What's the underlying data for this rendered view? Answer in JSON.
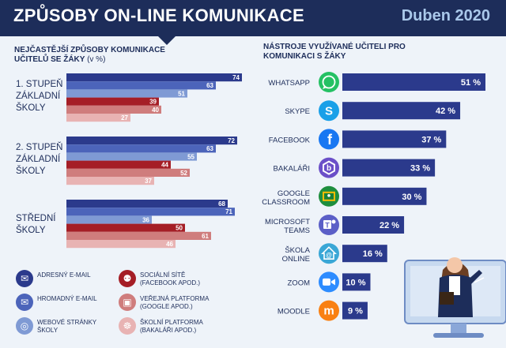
{
  "header": {
    "title": "ZPŮSOBY ON-LINE KOMUNIKACE",
    "date": "Duben 2020"
  },
  "left_title": "NEJČASTĚJŠÍ ZPŮSOBY KOMUNIKACE UČITELŮ SE ŽÁKY",
  "left_unit": "(v %)",
  "right_title": "NÁSTROJE VYUŽÍVANÉ UČITELI PRO KOMUNIKACI S ŽÁKY",
  "colors": {
    "navy": "#1d2d5a",
    "bar_dark_blue": "#2b3a8c",
    "bar_mid_blue": "#4c64ba",
    "bar_light_blue": "#7f9ad4",
    "bar_dark_red": "#a51e26",
    "bar_mid_red": "#cf7d7d",
    "bar_light_red": "#e8b3b3",
    "tool_bar": "#2b3a8c",
    "background": "#eef3f9"
  },
  "legend": [
    {
      "label": "ADRESNÝ E-MAIL",
      "icon": "envelope-icon",
      "color": "#2b3a8c"
    },
    {
      "label": "HROMADNÝ E-MAIL",
      "icon": "envelope-icon",
      "color": "#4c64ba"
    },
    {
      "label": "WEBOVÉ STRÁNKY ŠKOLY",
      "icon": "globe-icon",
      "color": "#7f9ad4"
    },
    {
      "label": "SOCIÁLNÍ SÍTĚ (FACEBOOK APOD.)",
      "icon": "people-network-icon",
      "color": "#a51e26"
    },
    {
      "label": "VEŘEJNÁ PLATFORMA (GOOGLE APOD.)",
      "icon": "classroom-icon",
      "color": "#cf7d7d"
    },
    {
      "label": "ŠKOLNÍ PLATFORMA (BAKALÁŘI APOD.)",
      "icon": "school-network-icon",
      "color": "#e8b3b3"
    }
  ],
  "chart_data": [
    {
      "type": "bar",
      "orientation": "horizontal",
      "title": "NEJČASTĚJŠÍ ZPŮSOBY KOMUNIKACE UČITELŮ SE ŽÁKY (v %)",
      "categories": [
        "1. STUPEŇ ZÁKLADNÍ ŠKOLY",
        "2. STUPEŇ ZÁKLADNÍ ŠKOLY",
        "STŘEDNÍ ŠKOLY"
      ],
      "series": [
        {
          "name": "ADRESNÝ E-MAIL",
          "color": "#2b3a8c",
          "values": [
            74,
            72,
            68
          ]
        },
        {
          "name": "HROMADNÝ E-MAIL",
          "color": "#4c64ba",
          "values": [
            63,
            63,
            71
          ]
        },
        {
          "name": "WEBOVÉ STRÁNKY ŠKOLY",
          "color": "#7f9ad4",
          "values": [
            51,
            55,
            36
          ]
        },
        {
          "name": "SOCIÁLNÍ SÍTĚ (FACEBOOK APOD.)",
          "color": "#a51e26",
          "values": [
            39,
            44,
            50
          ]
        },
        {
          "name": "VEŘEJNÁ PLATFORMA (GOOGLE APOD.)",
          "color": "#cf7d7d",
          "values": [
            40,
            52,
            61
          ]
        },
        {
          "name": "ŠKOLNÍ PLATFORMA (BAKALÁŘI APOD.)",
          "color": "#e8b3b3",
          "values": [
            27,
            37,
            46
          ]
        }
      ],
      "xlim": [
        0,
        74
      ],
      "legend": "bottom",
      "grid": false
    },
    {
      "type": "bar",
      "orientation": "horizontal",
      "title": "NÁSTROJE VYUŽÍVANÉ UČITELI PRO KOMUNIKACI S ŽÁKY",
      "categories": [
        "WHATSAPP",
        "SKYPE",
        "FACEBOOK",
        "BAKALÁŘI",
        "GOOGLE CLASSROOM",
        "MICROSOFT TEAMS",
        "ŠKOLA ONLINE",
        "ZOOM",
        "MOODLE"
      ],
      "values": [
        51,
        42,
        37,
        33,
        30,
        22,
        16,
        10,
        9
      ],
      "value_labels": [
        "51 %",
        "42 %",
        "37 %",
        "33 %",
        "30 %",
        "22 %",
        "16 %",
        "10 %",
        "9 %"
      ],
      "icons": [
        {
          "name": "whatsapp-icon",
          "color": "#25c164"
        },
        {
          "name": "skype-icon",
          "color": "#1aa0e8"
        },
        {
          "name": "facebook-icon",
          "color": "#1877f2"
        },
        {
          "name": "bakalari-icon",
          "color": "#6b4fc8"
        },
        {
          "name": "google-classroom-icon",
          "color": "#1e8e3e"
        },
        {
          "name": "microsoft-teams-icon",
          "color": "#5b5fc7"
        },
        {
          "name": "skola-online-icon",
          "color": "#3aa7d6"
        },
        {
          "name": "zoom-icon",
          "color": "#2d8cff"
        },
        {
          "name": "moodle-icon",
          "color": "#f98012"
        }
      ],
      "xlim": [
        0,
        51
      ],
      "grid": false
    }
  ]
}
